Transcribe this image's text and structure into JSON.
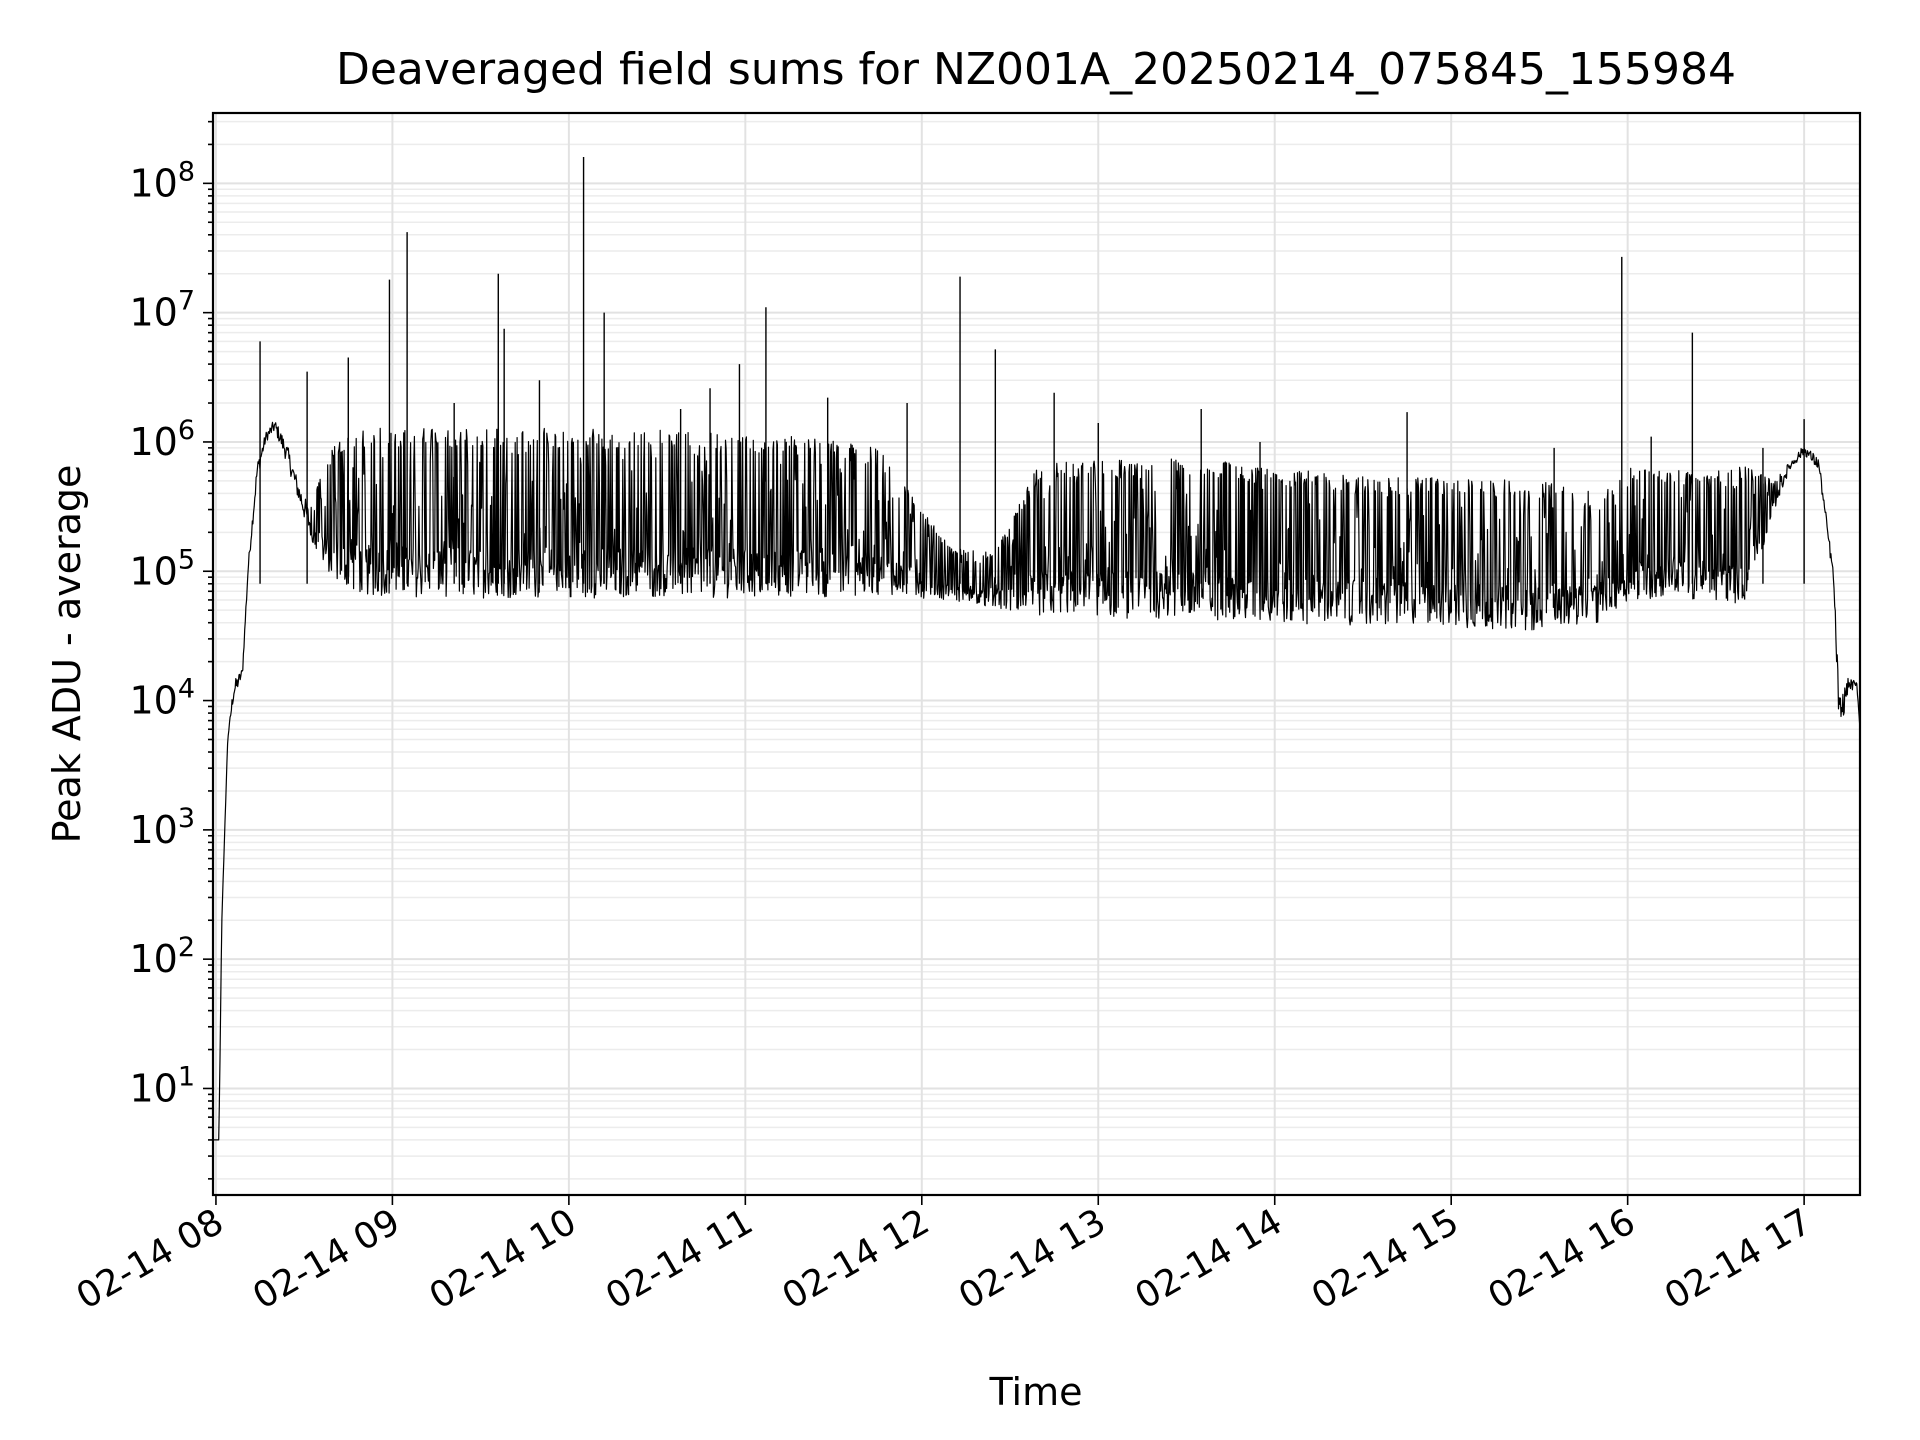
{
  "chart_data": {
    "type": "line",
    "title": "Deaveraged field sums for NZ001A_20250214_075845_155984",
    "xlabel": "Time",
    "ylabel": "Peak ADU - average",
    "yscale": "log",
    "ylim": [
      1.5,
      350000000
    ],
    "xlim": [
      "2025-02-14 07:59",
      "2025-02-14 17:19"
    ],
    "x_ticks": [
      "02-14 08",
      "02-14 09",
      "02-14 10",
      "02-14 11",
      "02-14 12",
      "02-14 13",
      "02-14 14",
      "02-14 15",
      "02-14 16",
      "02-14 17"
    ],
    "y_ticks": [
      {
        "value": 10,
        "base": "10",
        "exp": "1"
      },
      {
        "value": 100,
        "base": "10",
        "exp": "2"
      },
      {
        "value": 1000,
        "base": "10",
        "exp": "3"
      },
      {
        "value": 10000,
        "base": "10",
        "exp": "4"
      },
      {
        "value": 100000,
        "base": "10",
        "exp": "5"
      },
      {
        "value": 1000000,
        "base": "10",
        "exp": "6"
      },
      {
        "value": 10000000,
        "base": "10",
        "exp": "7"
      },
      {
        "value": 100000000,
        "base": "10",
        "exp": "8"
      }
    ],
    "grid": true,
    "line_color": "#000000",
    "series": [
      {
        "name": "",
        "envelope": [
          {
            "x": "2025-02-14 07:59",
            "lo": 4,
            "hi": 4
          },
          {
            "x": "2025-02-14 08:01",
            "lo": 4,
            "hi": 4
          },
          {
            "x": "2025-02-14 08:02",
            "lo": 200,
            "hi": 200
          },
          {
            "x": "2025-02-14 08:04",
            "lo": 5000,
            "hi": 5000
          },
          {
            "x": "2025-02-14 08:06",
            "lo": 10000,
            "hi": 14000
          },
          {
            "x": "2025-02-14 08:09",
            "lo": 15000,
            "hi": 18000
          },
          {
            "x": "2025-02-14 08:11",
            "lo": 100000,
            "hi": 120000
          },
          {
            "x": "2025-02-14 08:14",
            "lo": 500000,
            "hi": 700000
          },
          {
            "x": "2025-02-14 08:17",
            "lo": 1000000,
            "hi": 1200000
          },
          {
            "x": "2025-02-14 08:20",
            "lo": 1200000,
            "hi": 1500000
          },
          {
            "x": "2025-02-14 08:24",
            "lo": 700000,
            "hi": 1000000
          },
          {
            "x": "2025-02-14 08:28",
            "lo": 350000,
            "hi": 500000
          },
          {
            "x": "2025-02-14 08:32",
            "lo": 180000,
            "hi": 300000
          },
          {
            "x": "2025-02-14 08:36",
            "lo": 120000,
            "hi": 600000
          },
          {
            "x": "2025-02-14 08:40",
            "lo": 85000,
            "hi": 1000000
          },
          {
            "x": "2025-02-14 08:50",
            "lo": 65000,
            "hi": 1300000
          },
          {
            "x": "2025-02-14 09:20",
            "lo": 62000,
            "hi": 1300000
          },
          {
            "x": "2025-02-14 10:30",
            "lo": 62000,
            "hi": 1250000
          },
          {
            "x": "2025-02-14 11:20",
            "lo": 62000,
            "hi": 1100000
          },
          {
            "x": "2025-02-14 11:45",
            "lo": 65000,
            "hi": 900000
          },
          {
            "x": "2025-02-14 12:10",
            "lo": 60000,
            "hi": 150000
          },
          {
            "x": "2025-02-14 12:25",
            "lo": 50000,
            "hi": 140000
          },
          {
            "x": "2025-02-14 12:40",
            "lo": 45000,
            "hi": 700000
          },
          {
            "x": "2025-02-14 13:30",
            "lo": 42000,
            "hi": 750000
          },
          {
            "x": "2025-02-14 14:30",
            "lo": 38000,
            "hi": 550000
          },
          {
            "x": "2025-02-14 15:30",
            "lo": 35000,
            "hi": 500000
          },
          {
            "x": "2025-02-14 15:50",
            "lo": 40000,
            "hi": 400000
          },
          {
            "x": "2025-02-14 16:00",
            "lo": 60000,
            "hi": 650000
          },
          {
            "x": "2025-02-14 16:25",
            "lo": 60000,
            "hi": 600000
          },
          {
            "x": "2025-02-14 16:40",
            "lo": 55000,
            "hi": 650000
          },
          {
            "x": "2025-02-14 16:50",
            "lo": 300000,
            "hi": 500000
          },
          {
            "x": "2025-02-14 16:55",
            "lo": 600000,
            "hi": 700000
          },
          {
            "x": "2025-02-14 17:00",
            "lo": 800000,
            "hi": 950000
          },
          {
            "x": "2025-02-14 17:05",
            "lo": 600000,
            "hi": 750000
          },
          {
            "x": "2025-02-14 17:10",
            "lo": 80000,
            "hi": 100000
          },
          {
            "x": "2025-02-14 17:12",
            "lo": 5000,
            "hi": 10000
          },
          {
            "x": "2025-02-14 17:15",
            "lo": 12000,
            "hi": 15000
          },
          {
            "x": "2025-02-14 17:18",
            "lo": 12000,
            "hi": 14000
          },
          {
            "x": "2025-02-14 17:19",
            "lo": 6000,
            "hi": 6000
          }
        ],
        "spikes": [
          {
            "x": "2025-02-14 08:15",
            "y": 6000000
          },
          {
            "x": "2025-02-14 08:31",
            "y": 3500000
          },
          {
            "x": "2025-02-14 08:45",
            "y": 4500000
          },
          {
            "x": "2025-02-14 08:59",
            "y": 18000000
          },
          {
            "x": "2025-02-14 09:05",
            "y": 42000000
          },
          {
            "x": "2025-02-14 09:21",
            "y": 2000000
          },
          {
            "x": "2025-02-14 09:36",
            "y": 20000000
          },
          {
            "x": "2025-02-14 09:38",
            "y": 7500000
          },
          {
            "x": "2025-02-14 09:50",
            "y": 3000000
          },
          {
            "x": "2025-02-14 10:05",
            "y": 160000000
          },
          {
            "x": "2025-02-14 10:12",
            "y": 10000000
          },
          {
            "x": "2025-02-14 10:38",
            "y": 1800000
          },
          {
            "x": "2025-02-14 10:48",
            "y": 2600000
          },
          {
            "x": "2025-02-14 10:58",
            "y": 4000000
          },
          {
            "x": "2025-02-14 11:07",
            "y": 11000000
          },
          {
            "x": "2025-02-14 11:28",
            "y": 2200000
          },
          {
            "x": "2025-02-14 11:55",
            "y": 2000000
          },
          {
            "x": "2025-02-14 12:13",
            "y": 19000000
          },
          {
            "x": "2025-02-14 12:25",
            "y": 5200000
          },
          {
            "x": "2025-02-14 12:45",
            "y": 2400000
          },
          {
            "x": "2025-02-14 13:00",
            "y": 1400000
          },
          {
            "x": "2025-02-14 13:35",
            "y": 1800000
          },
          {
            "x": "2025-02-14 13:55",
            "y": 1000000
          },
          {
            "x": "2025-02-14 14:45",
            "y": 1700000
          },
          {
            "x": "2025-02-14 15:35",
            "y": 900000
          },
          {
            "x": "2025-02-14 15:58",
            "y": 27000000
          },
          {
            "x": "2025-02-14 16:08",
            "y": 1100000
          },
          {
            "x": "2025-02-14 16:22",
            "y": 7000000
          },
          {
            "x": "2025-02-14 16:46",
            "y": 900000
          },
          {
            "x": "2025-02-14 17:00",
            "y": 1500000
          }
        ]
      }
    ]
  }
}
